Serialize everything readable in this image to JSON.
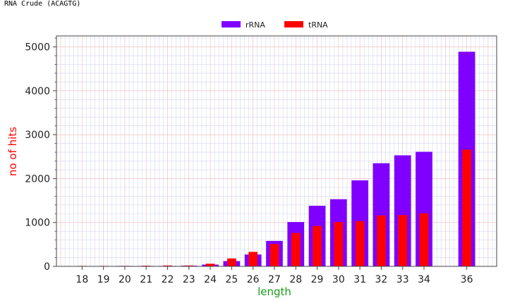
{
  "page": {
    "title": "RNA Crude (ACAGTG)"
  },
  "chart_data": {
    "type": "bar",
    "title": "",
    "xlabel": "length",
    "ylabel": "no of hits",
    "xlabel_color": "#1a9c1a",
    "ylabel_color": "#ff0000",
    "categories": [
      "18",
      "19",
      "20",
      "21",
      "22",
      "23",
      "24",
      "25",
      "26",
      "27",
      "28",
      "29",
      "30",
      "31",
      "32",
      "33",
      "34",
      "36"
    ],
    "x": [
      18,
      19,
      20,
      21,
      22,
      23,
      24,
      25,
      26,
      27,
      28,
      29,
      30,
      31,
      32,
      33,
      34,
      36
    ],
    "xlim": [
      16.8,
      37.4
    ],
    "ylim": [
      0,
      5250
    ],
    "yticks": [
      0,
      1000,
      2000,
      3000,
      4000,
      5000
    ],
    "grid": true,
    "legend_position": "top-center",
    "series": [
      {
        "name": "rRNA",
        "color": "#7f00ff",
        "values": [
          5,
          5,
          10,
          10,
          10,
          15,
          40,
          120,
          270,
          580,
          1010,
          1380,
          1530,
          1960,
          2350,
          2530,
          2610,
          4890
        ]
      },
      {
        "name": "tRNA",
        "color": "#ff0000",
        "values": [
          10,
          10,
          10,
          15,
          20,
          20,
          60,
          180,
          330,
          510,
          760,
          920,
          1010,
          1030,
          1160,
          1170,
          1210,
          2660
        ]
      }
    ]
  }
}
